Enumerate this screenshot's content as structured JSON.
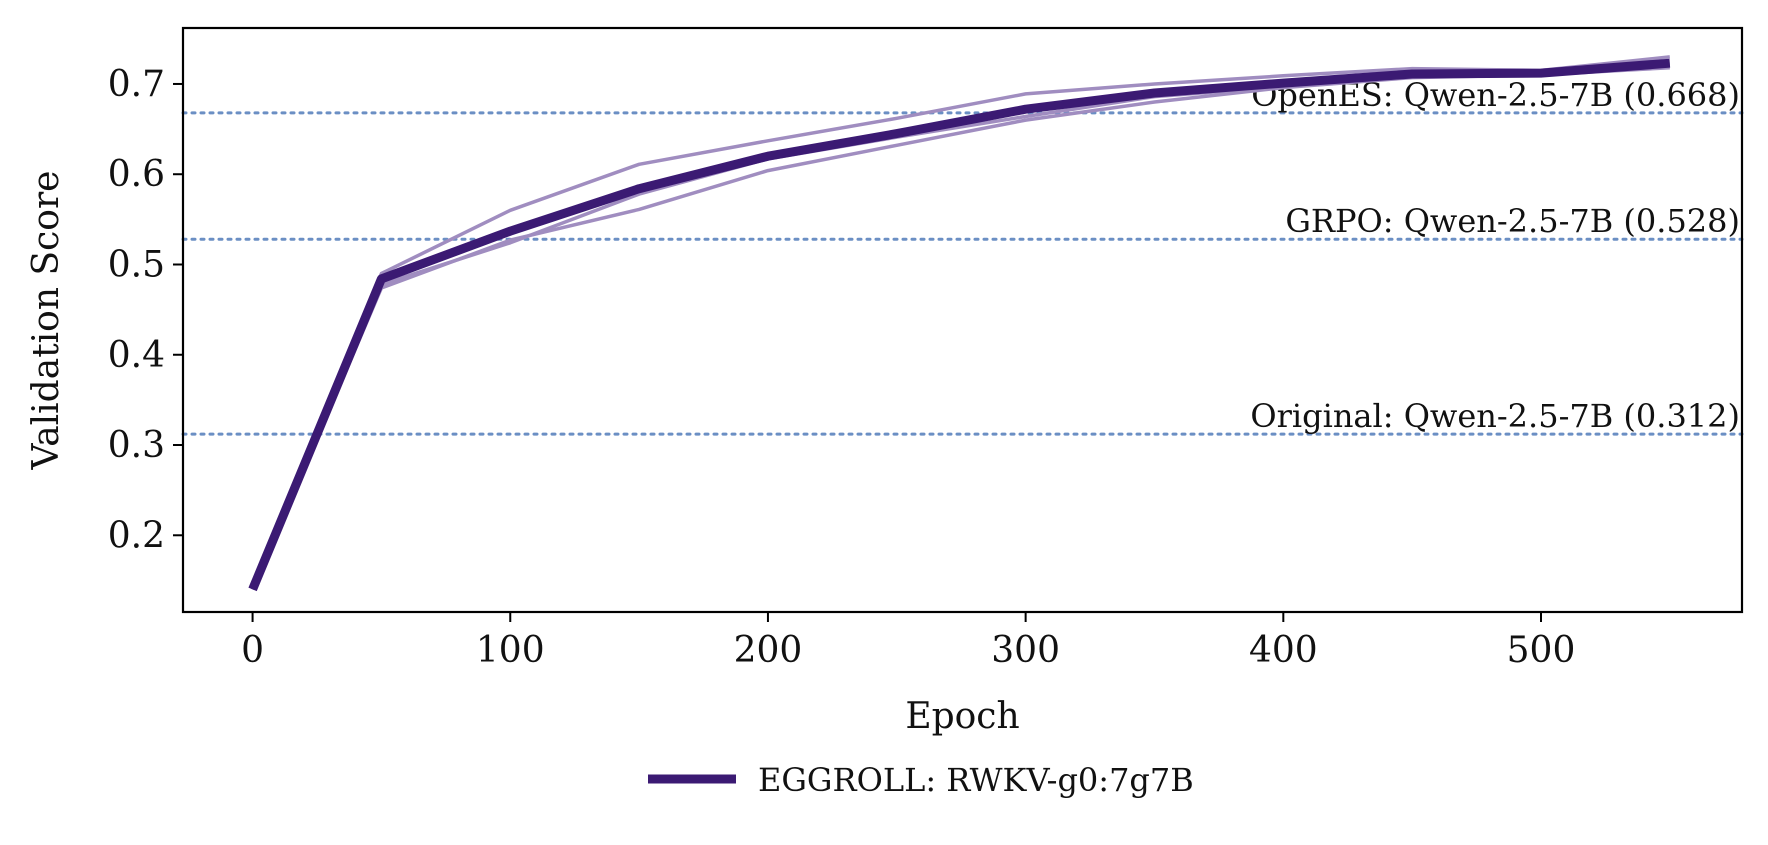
{
  "chart_data": {
    "type": "line",
    "title": "",
    "xlabel": "Epoch",
    "ylabel": "Validation Score",
    "xlim": [
      -27,
      578
    ],
    "ylim": [
      0.115,
      0.762
    ],
    "xticks": [
      0,
      100,
      200,
      300,
      400,
      500
    ],
    "yticks": [
      0.2,
      0.3,
      0.4,
      0.5,
      0.6,
      0.7
    ],
    "ytick_labels": [
      "0.2",
      "0.3",
      "0.4",
      "0.5",
      "0.6",
      "0.7"
    ],
    "grid": false,
    "legend_position": "bottom-center",
    "series": [
      {
        "name": "EGGROLL: RWKV-g0:7g7B",
        "color": "#3b1a73",
        "style": "mean",
        "x": [
          0,
          50,
          100,
          150,
          200,
          250,
          300,
          350,
          400,
          450,
          500,
          550
        ],
        "values": [
          0.14,
          0.484,
          0.537,
          0.584,
          0.62,
          0.645,
          0.672,
          0.69,
          0.701,
          0.711,
          0.712,
          0.723
        ]
      },
      {
        "color": "#a08dc0",
        "style": "run",
        "x": [
          0,
          50,
          100,
          150,
          200,
          250,
          300,
          350,
          400,
          450,
          500,
          550
        ],
        "values": [
          0.14,
          0.49,
          0.56,
          0.611,
          0.637,
          0.662,
          0.689,
          0.7,
          0.709,
          0.717,
          0.715,
          0.73
        ]
      },
      {
        "color": "#a08dc0",
        "style": "run",
        "x": [
          0,
          50,
          100,
          150,
          200,
          250,
          300,
          350,
          400,
          450,
          500,
          550
        ],
        "values": [
          0.14,
          0.474,
          0.527,
          0.561,
          0.604,
          0.632,
          0.66,
          0.68,
          0.696,
          0.707,
          0.71,
          0.718
        ]
      },
      {
        "color": "#a08dc0",
        "style": "run",
        "x": [
          0,
          50,
          100,
          150,
          200,
          250,
          300,
          350,
          400,
          450,
          500,
          550
        ],
        "values": [
          0.14,
          0.478,
          0.524,
          0.578,
          0.617,
          0.641,
          0.664,
          0.686,
          0.697,
          0.709,
          0.713,
          0.722
        ]
      }
    ],
    "reference_lines": [
      {
        "label": "OpenES: Qwen-2.5-7B (0.668)",
        "value": 0.668,
        "color": "#6b8fc4"
      },
      {
        "label": "GRPO: Qwen-2.5-7B (0.528)",
        "value": 0.528,
        "color": "#6b8fc4"
      },
      {
        "label": "Original: Qwen-2.5-7B (0.312)",
        "value": 0.312,
        "color": "#6b8fc4"
      }
    ],
    "legend": [
      {
        "label": "EGGROLL: RWKV-g0:7g7B",
        "color": "#3b1a73"
      }
    ]
  }
}
